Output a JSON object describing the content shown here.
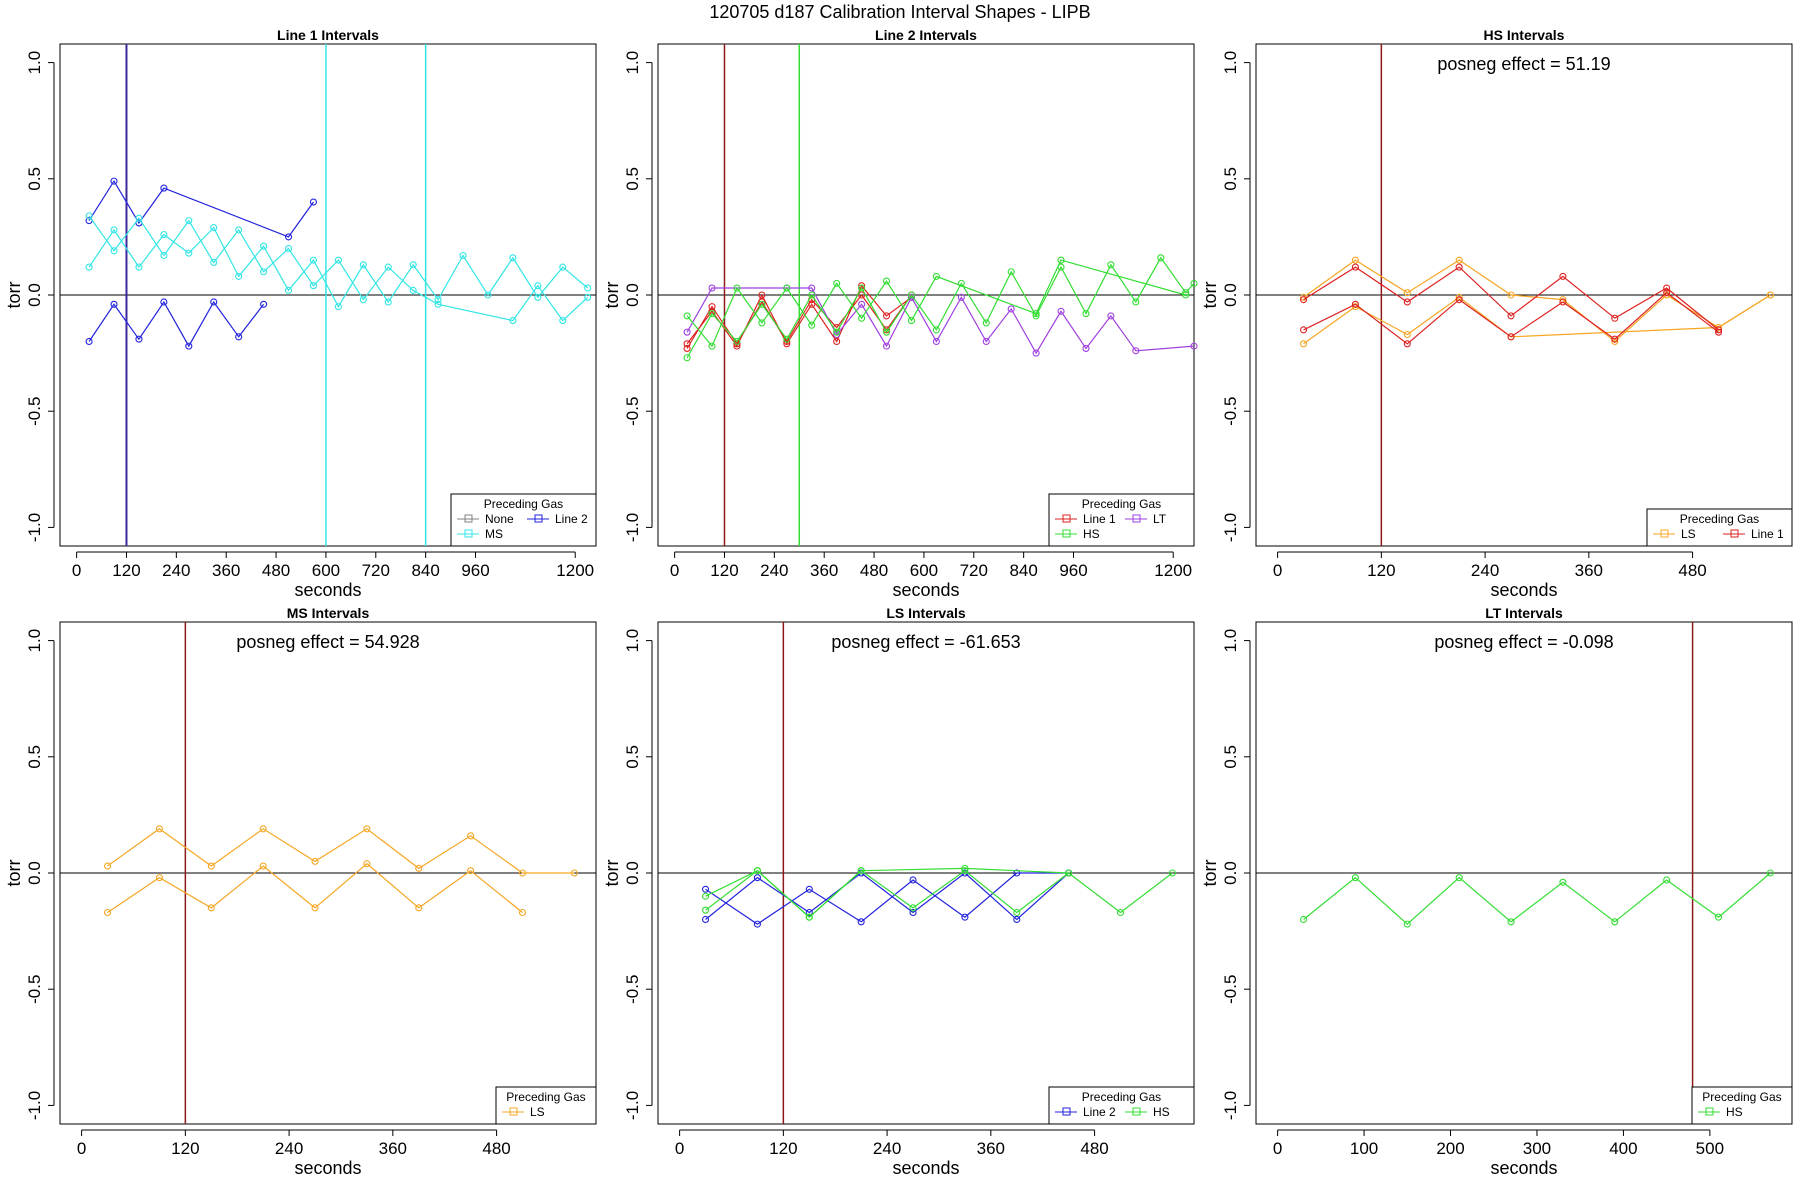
{
  "page_title": "120705   d187   Calibration Interval Shapes - LIPB",
  "colors": {
    "None": "#808080",
    "Line 1": "#dd2222",
    "Line 2": "#2222dd",
    "HS": "#33dd33",
    "MS": "#33e5e5",
    "LS": "#f5a623",
    "LT": "#a040e0",
    "zero_line": "#000000",
    "vline_dark": "#8b1a1a"
  },
  "chart_data": [
    {
      "type": "line",
      "title": "Line 1 Intervals",
      "xlabel": "seconds",
      "ylabel": "torr",
      "xlim": [
        -40,
        1250
      ],
      "ylim": [
        -1.08,
        1.08
      ],
      "xticks": [
        0,
        120,
        240,
        360,
        480,
        600,
        720,
        840,
        960,
        1200
      ],
      "xtick_labels": [
        "0",
        "120",
        "240",
        "360",
        "480",
        "600",
        "720",
        "840",
        "960",
        "1200"
      ],
      "yticks": [
        -1.0,
        -0.5,
        0.0,
        0.5,
        1.0
      ],
      "ytick_labels": [
        "-1.0",
        "-0.5",
        "0.0",
        "0.5",
        "1.0"
      ],
      "annotation": "",
      "vlines": [
        {
          "x": 120,
          "color": "#3b2a9a",
          "width": 2
        },
        {
          "x": 600,
          "color": "#33e5e5",
          "width": 1.5
        },
        {
          "x": 840,
          "color": "#33e5e5",
          "width": 1.5
        }
      ],
      "legend": {
        "title": "Preceding Gas",
        "entries": [
          "None",
          "Line 2",
          "MS"
        ],
        "ncol": 2,
        "position": "bottom-right"
      },
      "series": [
        {
          "name": "Line 2",
          "color": "#2222dd",
          "x": [
            30,
            90,
            150,
            210,
            270,
            330,
            390,
            450
          ],
          "y": [
            -0.2,
            -0.04,
            -0.19,
            -0.03,
            -0.22,
            -0.03,
            -0.18,
            -0.04
          ]
        },
        {
          "name": "Line 2",
          "color": "#2222dd",
          "x": [
            30,
            90,
            150,
            210,
            510,
            570
          ],
          "y": [
            0.32,
            0.49,
            0.31,
            0.46,
            0.25,
            0.4
          ]
        },
        {
          "name": "MS",
          "color": "#33e5e5",
          "x": [
            30,
            90,
            150,
            210,
            270,
            330,
            390,
            450,
            510,
            570,
            630,
            690,
            750,
            810,
            870,
            930,
            990,
            1050,
            1110,
            1170,
            1230
          ],
          "y": [
            0.12,
            0.28,
            0.12,
            0.26,
            0.18,
            0.29,
            0.08,
            0.21,
            0.02,
            0.15,
            -0.05,
            0.13,
            -0.03,
            0.13,
            -0.02,
            0.17,
            0.0,
            0.16,
            -0.01,
            0.12,
            0.03
          ]
        },
        {
          "name": "MS",
          "color": "#33e5e5",
          "x": [
            30,
            90,
            150,
            210,
            270,
            330,
            390,
            450,
            510,
            570,
            630,
            690,
            750,
            810,
            870,
            1050,
            1110,
            1170,
            1230
          ],
          "y": [
            0.34,
            0.19,
            0.33,
            0.17,
            0.32,
            0.14,
            0.28,
            0.1,
            0.2,
            0.04,
            0.15,
            -0.02,
            0.12,
            0.02,
            -0.04,
            -0.11,
            0.04,
            -0.11,
            -0.01
          ]
        }
      ]
    },
    {
      "type": "line",
      "title": "Line 2 Intervals",
      "xlabel": "seconds",
      "ylabel": "torr",
      "xlim": [
        -40,
        1250
      ],
      "ylim": [
        -1.08,
        1.08
      ],
      "xticks": [
        0,
        120,
        240,
        360,
        480,
        600,
        720,
        840,
        960,
        1200
      ],
      "xtick_labels": [
        "0",
        "120",
        "240",
        "360",
        "480",
        "600",
        "720",
        "840",
        "960",
        "1200"
      ],
      "yticks": [
        -1.0,
        -0.5,
        0.0,
        0.5,
        1.0
      ],
      "ytick_labels": [
        "-1.0",
        "-0.5",
        "0.0",
        "0.5",
        "1.0"
      ],
      "annotation": "",
      "vlines": [
        {
          "x": 120,
          "color": "#8b1a1a",
          "width": 1.5
        },
        {
          "x": 300,
          "color": "#33dd33",
          "width": 1.5
        }
      ],
      "legend": {
        "title": "Preceding Gas",
        "entries": [
          "Line 1",
          "LT",
          "HS"
        ],
        "ncol": 2,
        "position": "bottom-right"
      },
      "series": [
        {
          "name": "Line 1",
          "color": "#dd2222",
          "x": [
            30,
            90,
            150,
            210,
            270,
            330,
            390,
            450,
            510,
            570
          ],
          "y": [
            -0.21,
            -0.07,
            -0.22,
            0.0,
            -0.21,
            -0.04,
            -0.2,
            0.04,
            -0.09,
            -0.01
          ]
        },
        {
          "name": "Line 1",
          "color": "#dd2222",
          "x": [
            30,
            90,
            150,
            210,
            270,
            330,
            390,
            450,
            510,
            570
          ],
          "y": [
            -0.23,
            -0.05,
            -0.21,
            -0.03,
            -0.2,
            -0.02,
            -0.14,
            0.0,
            -0.15,
            0.0
          ]
        },
        {
          "name": "LT",
          "color": "#a040e0",
          "x": [
            30,
            90,
            270,
            330,
            390,
            450,
            510,
            570,
            630,
            690,
            750,
            810,
            870,
            930,
            990,
            1050,
            1110,
            1250
          ],
          "y": [
            -0.16,
            0.03,
            0.03,
            0.03,
            -0.17,
            -0.04,
            -0.22,
            -0.01,
            -0.2,
            -0.01,
            -0.2,
            -0.06,
            -0.25,
            -0.07,
            -0.23,
            -0.09,
            -0.24,
            -0.22
          ]
        },
        {
          "name": "HS",
          "color": "#33dd33",
          "x": [
            30,
            90,
            150,
            210,
            270,
            330,
            390,
            450,
            510,
            570,
            630,
            690,
            750,
            810,
            870,
            930,
            990,
            1050,
            1110,
            1170,
            1230,
            1250
          ],
          "y": [
            -0.27,
            -0.08,
            -0.2,
            -0.04,
            -0.19,
            0.0,
            -0.16,
            0.03,
            -0.16,
            0.0,
            -0.15,
            0.05,
            -0.12,
            0.1,
            -0.09,
            0.12,
            -0.08,
            0.13,
            -0.03,
            0.16,
            0.01,
            0.05
          ]
        },
        {
          "name": "HS",
          "color": "#33dd33",
          "x": [
            30,
            90,
            150,
            210,
            270,
            330,
            390,
            450,
            510,
            570,
            630,
            870,
            930,
            1230
          ],
          "y": [
            -0.09,
            -0.22,
            0.03,
            -0.12,
            0.03,
            -0.13,
            0.05,
            -0.1,
            0.06,
            -0.11,
            0.08,
            -0.08,
            0.15,
            0.0
          ]
        }
      ]
    },
    {
      "type": "line",
      "title": "HS Intervals",
      "xlabel": "seconds",
      "ylabel": "torr",
      "xlim": [
        -25,
        595
      ],
      "ylim": [
        -1.08,
        1.08
      ],
      "xticks": [
        0,
        120,
        240,
        360,
        480
      ],
      "xtick_labels": [
        "0",
        "120",
        "240",
        "360",
        "480"
      ],
      "yticks": [
        -1.0,
        -0.5,
        0.0,
        0.5,
        1.0
      ],
      "ytick_labels": [
        "-1.0",
        "-0.5",
        "0.0",
        "0.5",
        "1.0"
      ],
      "annotation": "posneg effect = 51.19",
      "vlines": [
        {
          "x": 120,
          "color": "#8b1a1a",
          "width": 1.5
        }
      ],
      "legend": {
        "title": "Preceding Gas",
        "entries": [
          "LS",
          "Line 1"
        ],
        "ncol": 2,
        "position": "bottom-right"
      },
      "series": [
        {
          "name": "LS",
          "color": "#f5a623",
          "x": [
            30,
            90,
            150,
            210,
            270,
            510,
            570
          ],
          "y": [
            -0.21,
            -0.05,
            -0.17,
            -0.01,
            -0.18,
            -0.14,
            0.0
          ]
        },
        {
          "name": "LS",
          "color": "#f5a623",
          "x": [
            30,
            90,
            150,
            210,
            270,
            330,
            390,
            450,
            510,
            570
          ],
          "y": [
            -0.01,
            0.15,
            0.01,
            0.15,
            0.0,
            -0.02,
            -0.2,
            0.0,
            -0.14,
            0.0
          ]
        },
        {
          "name": "Line 1",
          "color": "#dd2222",
          "x": [
            30,
            90,
            150,
            210,
            270,
            330,
            390,
            450,
            510
          ],
          "y": [
            -0.02,
            0.12,
            -0.03,
            0.12,
            -0.09,
            0.08,
            -0.1,
            0.03,
            -0.15
          ]
        },
        {
          "name": "Line 1",
          "color": "#dd2222",
          "x": [
            30,
            90,
            150,
            210,
            270,
            330,
            390,
            450,
            510
          ],
          "y": [
            -0.15,
            -0.04,
            -0.21,
            -0.02,
            -0.18,
            -0.03,
            -0.19,
            0.01,
            -0.16
          ]
        }
      ]
    },
    {
      "type": "line",
      "title": "MS Intervals",
      "xlabel": "seconds",
      "ylabel": "torr",
      "xlim": [
        -25,
        595
      ],
      "ylim": [
        -1.08,
        1.08
      ],
      "xticks": [
        0,
        120,
        240,
        360,
        480
      ],
      "xtick_labels": [
        "0",
        "120",
        "240",
        "360",
        "480"
      ],
      "yticks": [
        -1.0,
        -0.5,
        0.0,
        0.5,
        1.0
      ],
      "ytick_labels": [
        "-1.0",
        "-0.5",
        "0.0",
        "0.5",
        "1.0"
      ],
      "annotation": "posneg effect = 54.928",
      "vlines": [
        {
          "x": 120,
          "color": "#8b1a1a",
          "width": 1.5
        }
      ],
      "legend": {
        "title": "Preceding Gas",
        "entries": [
          "LS"
        ],
        "ncol": 1,
        "position": "bottom-right"
      },
      "series": [
        {
          "name": "LS",
          "color": "#f5a623",
          "x": [
            30,
            90,
            150,
            210,
            270,
            330,
            390,
            450,
            510,
            570
          ],
          "y": [
            0.03,
            0.19,
            0.03,
            0.19,
            0.05,
            0.19,
            0.02,
            0.16,
            0.0,
            0.0
          ]
        },
        {
          "name": "LS",
          "color": "#f5a623",
          "x": [
            30,
            90,
            150,
            210,
            270,
            330,
            390,
            450,
            510
          ],
          "y": [
            -0.17,
            -0.02,
            -0.15,
            0.03,
            -0.15,
            0.04,
            -0.15,
            0.01,
            -0.17
          ]
        }
      ]
    },
    {
      "type": "line",
      "title": "LS Intervals",
      "xlabel": "seconds",
      "ylabel": "torr",
      "xlim": [
        -25,
        595
      ],
      "ylim": [
        -1.08,
        1.08
      ],
      "xticks": [
        0,
        120,
        240,
        360,
        480
      ],
      "xtick_labels": [
        "0",
        "120",
        "240",
        "360",
        "480"
      ],
      "yticks": [
        -1.0,
        -0.5,
        0.0,
        0.5,
        1.0
      ],
      "ytick_labels": [
        "-1.0",
        "-0.5",
        "0.0",
        "0.5",
        "1.0"
      ],
      "annotation": "posneg effect = -61.653",
      "vlines": [
        {
          "x": 120,
          "color": "#8b1a1a",
          "width": 1.5
        }
      ],
      "legend": {
        "title": "Preceding Gas",
        "entries": [
          "Line 2",
          "HS"
        ],
        "ncol": 2,
        "position": "bottom-right"
      },
      "series": [
        {
          "name": "Line 2",
          "color": "#2222dd",
          "x": [
            30,
            90,
            150,
            210,
            270,
            330,
            390,
            450
          ],
          "y": [
            -0.07,
            -0.22,
            -0.07,
            -0.21,
            -0.03,
            -0.19,
            0.0,
            0.0
          ]
        },
        {
          "name": "Line 2",
          "color": "#2222dd",
          "x": [
            30,
            90,
            150,
            210,
            270,
            330,
            390,
            450
          ],
          "y": [
            -0.2,
            -0.02,
            -0.17,
            0.0,
            -0.17,
            0.0,
            -0.2,
            0.0
          ]
        },
        {
          "name": "HS",
          "color": "#33dd33",
          "x": [
            30,
            90,
            150,
            210,
            270,
            330,
            390,
            450
          ],
          "y": [
            -0.16,
            0.01,
            -0.19,
            0.01,
            -0.15,
            0.01,
            -0.17,
            0.0
          ]
        },
        {
          "name": "HS",
          "color": "#33dd33",
          "x": [
            30,
            90,
            150,
            210,
            330,
            450,
            510,
            570
          ],
          "y": [
            -0.1,
            0.01,
            -0.19,
            0.01,
            0.02,
            0.0,
            -0.17,
            0.0
          ]
        }
      ]
    },
    {
      "type": "line",
      "title": "LT Intervals",
      "xlabel": "seconds",
      "ylabel": "torr",
      "xlim": [
        -25,
        595
      ],
      "ylim": [
        -1.08,
        1.08
      ],
      "xticks": [
        0,
        100,
        200,
        300,
        400,
        500
      ],
      "xtick_labels": [
        "0",
        "100",
        "200",
        "300",
        "400",
        "500"
      ],
      "yticks": [
        -1.0,
        -0.5,
        0.0,
        0.5,
        1.0
      ],
      "ytick_labels": [
        "-1.0",
        "-0.5",
        "0.0",
        "0.5",
        "1.0"
      ],
      "annotation": "posneg effect = -0.098",
      "vlines": [
        {
          "x": 480,
          "color": "#8b1a1a",
          "width": 1.5
        }
      ],
      "legend": {
        "title": "Preceding Gas",
        "entries": [
          "HS"
        ],
        "ncol": 1,
        "position": "bottom-right"
      },
      "series": [
        {
          "name": "HS",
          "color": "#33dd33",
          "x": [
            30,
            90,
            150,
            210,
            270,
            330,
            390,
            450,
            510,
            570
          ],
          "y": [
            -0.2,
            -0.02,
            -0.22,
            -0.02,
            -0.21,
            -0.04,
            -0.21,
            -0.03,
            -0.19,
            0.0
          ]
        }
      ]
    }
  ]
}
